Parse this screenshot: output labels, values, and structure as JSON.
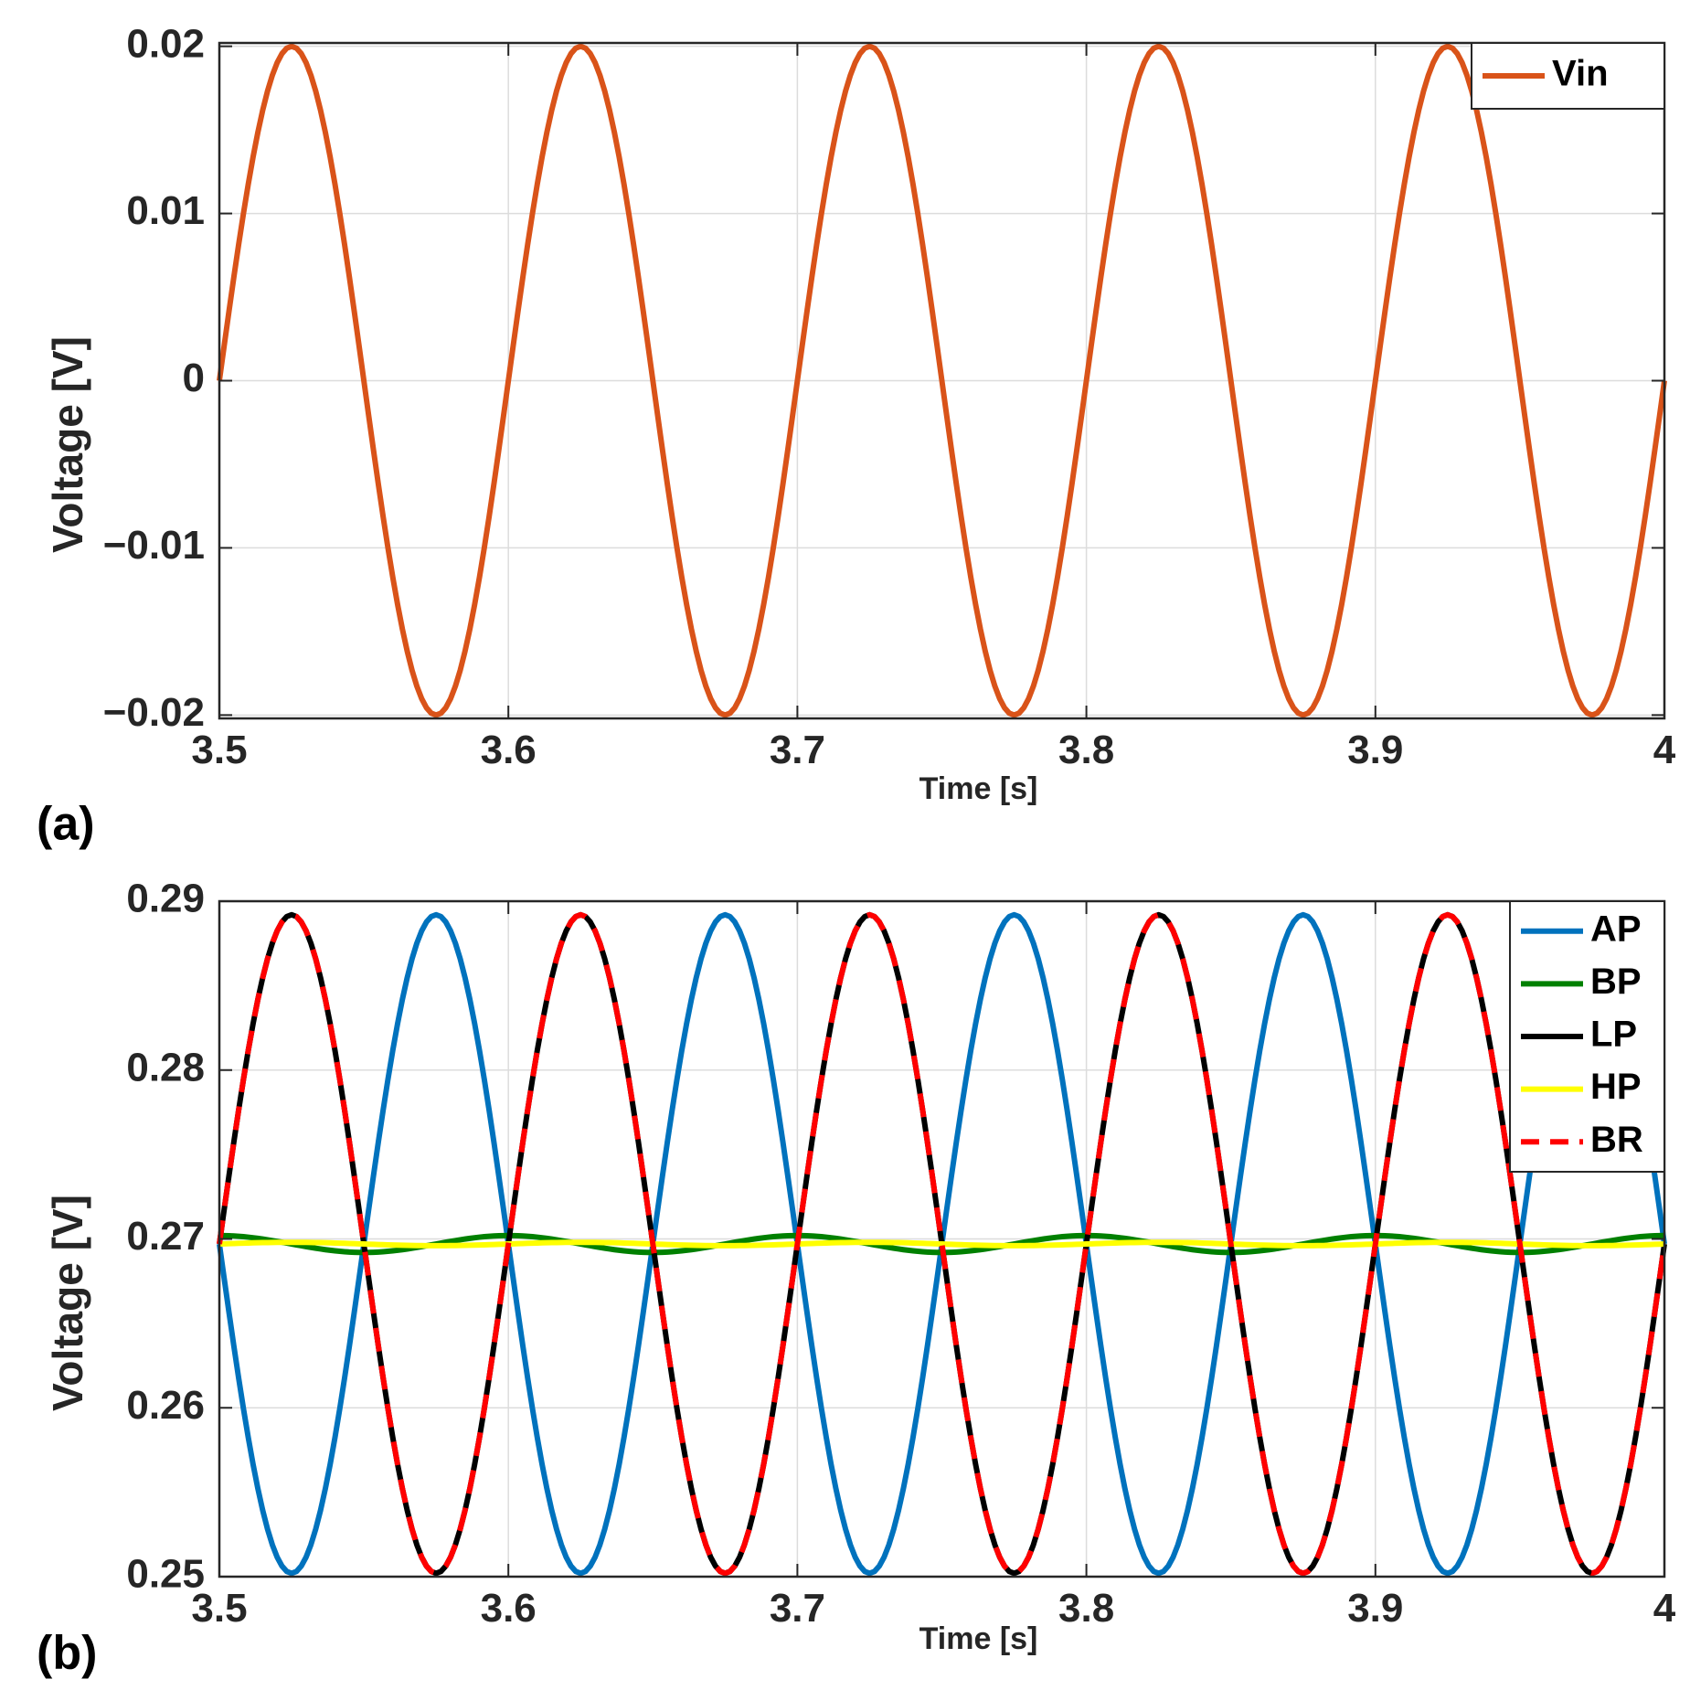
{
  "chart_data": [
    {
      "type": "line",
      "panel_label": "(a)",
      "xlabel": "Time [s]",
      "ylabel": "Voltage [V]",
      "xlim": [
        3.5,
        4.0
      ],
      "ylim": [
        -0.0202,
        0.0202
      ],
      "xticks": [
        3.5,
        3.6,
        3.7,
        3.8,
        3.9,
        4.0
      ],
      "xtick_labels": [
        "3.5",
        "3.6",
        "3.7",
        "3.8",
        "3.9",
        "4"
      ],
      "yticks": [
        0.02,
        0.01,
        0,
        -0.01,
        -0.02
      ],
      "ytick_labels": [
        "0.02",
        "0.01",
        "0",
        "−0.01",
        "−0.02"
      ],
      "grid": true,
      "legend_position": "top-right",
      "series": [
        {
          "name": "Vin",
          "color": "#d95319",
          "style": "solid",
          "offset": 0,
          "amplitude": 0.02,
          "frequency_hz": 10,
          "phase_deg": 0,
          "t_start": 3.5,
          "t_end": 4.0,
          "samples": 300
        }
      ]
    },
    {
      "type": "line",
      "panel_label": "(b)",
      "xlabel": "Time [s]",
      "ylabel": "Voltage [V]",
      "xlim": [
        3.5,
        4.0
      ],
      "ylim": [
        0.25,
        0.29
      ],
      "xticks": [
        3.5,
        3.6,
        3.7,
        3.8,
        3.9,
        4.0
      ],
      "xtick_labels": [
        "3.5",
        "3.6",
        "3.7",
        "3.8",
        "3.9",
        "4"
      ],
      "yticks": [
        0.29,
        0.28,
        0.27,
        0.26,
        0.25
      ],
      "ytick_labels": [
        "0.29",
        "0.28",
        "0.27",
        "0.26",
        "0.25"
      ],
      "grid": true,
      "legend_position": "top-right",
      "series": [
        {
          "name": "AP",
          "color": "#0072bd",
          "style": "solid",
          "offset": 0.2697,
          "amplitude": 0.0195,
          "frequency_hz": 10,
          "phase_deg": 180,
          "t_start": 3.5,
          "t_end": 4.0,
          "samples": 300
        },
        {
          "name": "BP",
          "color": "#008000",
          "style": "solid",
          "offset": 0.2697,
          "amplitude": 0.0005,
          "frequency_hz": 10,
          "phase_deg": 90,
          "t_start": 3.5,
          "t_end": 4.0,
          "samples": 300
        },
        {
          "name": "LP",
          "color": "#000000",
          "style": "solid",
          "offset": 0.2697,
          "amplitude": 0.0195,
          "frequency_hz": 10,
          "phase_deg": 0,
          "t_start": 3.5,
          "t_end": 4.0,
          "samples": 300
        },
        {
          "name": "HP",
          "color": "#ffff00",
          "style": "solid",
          "offset": 0.2697,
          "amplitude": 0.0001,
          "frequency_hz": 10,
          "phase_deg": 0,
          "t_start": 3.5,
          "t_end": 4.0,
          "samples": 300
        },
        {
          "name": "BR",
          "color": "#ff0000",
          "style": "dashed",
          "offset": 0.2697,
          "amplitude": 0.0195,
          "frequency_hz": 10,
          "phase_deg": 0,
          "t_start": 3.5,
          "t_end": 4.0,
          "samples": 300
        }
      ]
    }
  ]
}
